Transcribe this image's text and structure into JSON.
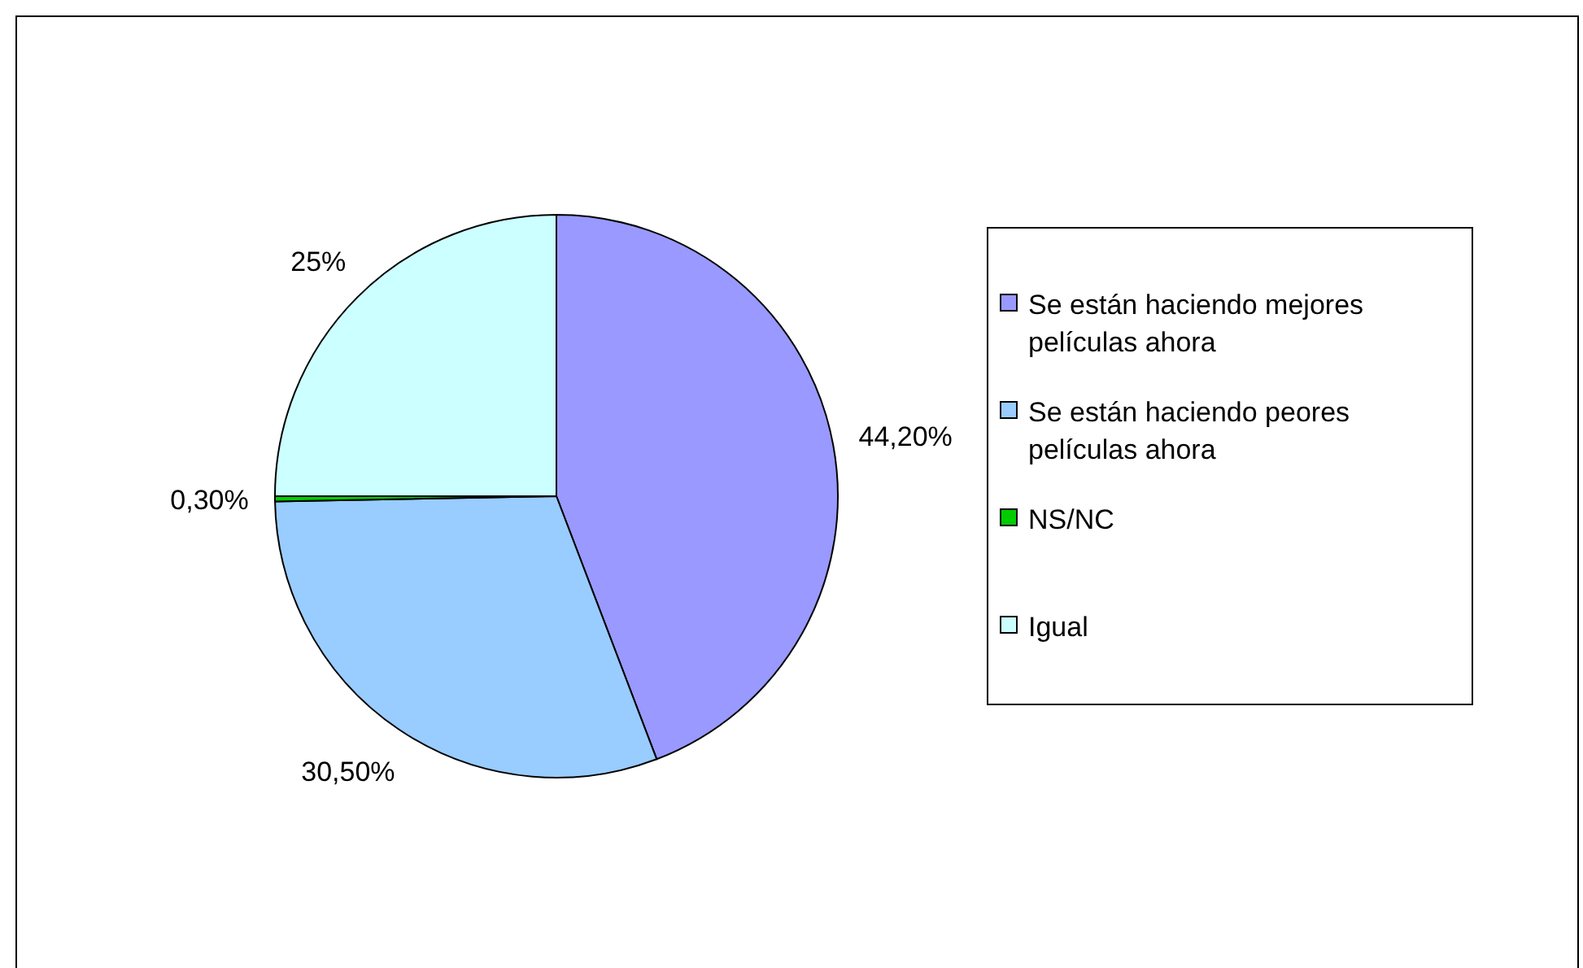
{
  "chart_data": {
    "type": "pie",
    "categories": [
      "Se están haciendo mejores películas ahora",
      "Se están haciendo peores películas ahora",
      "NS/NC",
      "Igual"
    ],
    "values": [
      44.2,
      30.5,
      0.3,
      25
    ],
    "colors": [
      "#9999ff",
      "#99ccff",
      "#00cc00",
      "#ccffff"
    ],
    "value_labels": [
      "44,20%",
      "30,50%",
      "0,30%",
      "25%"
    ],
    "legend": "right"
  }
}
